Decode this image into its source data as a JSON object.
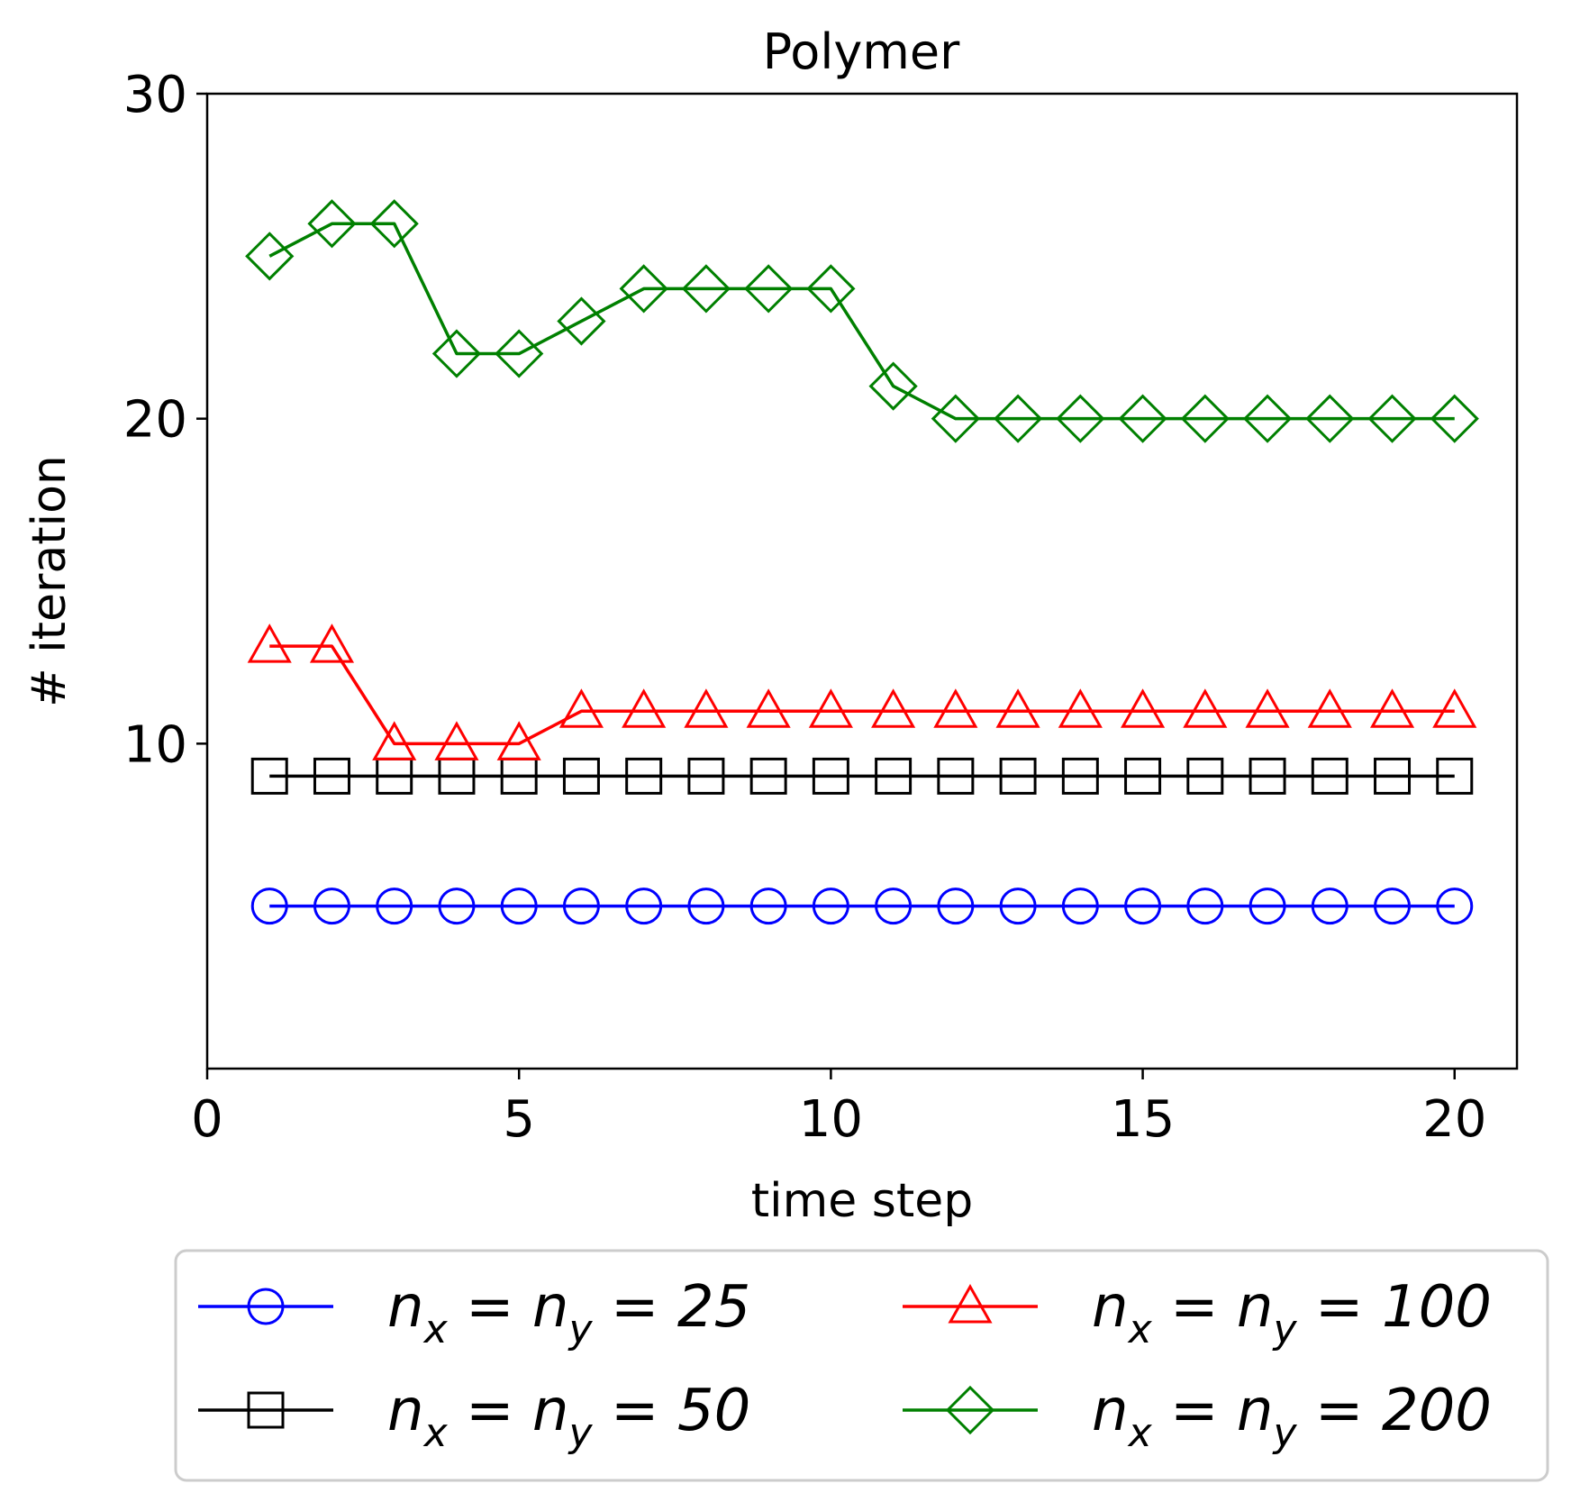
{
  "chart_data": {
    "type": "line",
    "title": "Polymer",
    "xlabel": "time step",
    "ylabel": "# iteration",
    "xlim": [
      0,
      21
    ],
    "ylim": [
      0,
      30
    ],
    "xticks": [
      0,
      5,
      10,
      15,
      20
    ],
    "yticks": [
      10,
      20,
      30
    ],
    "grid": false,
    "legend_position": "bottom-center",
    "x": [
      1,
      2,
      3,
      4,
      5,
      6,
      7,
      8,
      9,
      10,
      11,
      12,
      13,
      14,
      15,
      16,
      17,
      18,
      19,
      20
    ],
    "series": [
      {
        "name": "n_x = n_y = 25",
        "label_parts": [
          "n",
          "x",
          " = ",
          "n",
          "y",
          " = 25"
        ],
        "color": "#0000ff",
        "marker": "circle",
        "values": [
          5,
          5,
          5,
          5,
          5,
          5,
          5,
          5,
          5,
          5,
          5,
          5,
          5,
          5,
          5,
          5,
          5,
          5,
          5,
          5
        ]
      },
      {
        "name": "n_x = n_y = 50",
        "label_parts": [
          "n",
          "x",
          " = ",
          "n",
          "y",
          " = 50"
        ],
        "color": "#000000",
        "marker": "square",
        "values": [
          9,
          9,
          9,
          9,
          9,
          9,
          9,
          9,
          9,
          9,
          9,
          9,
          9,
          9,
          9,
          9,
          9,
          9,
          9,
          9
        ]
      },
      {
        "name": "n_x = n_y = 100",
        "label_parts": [
          "n",
          "x",
          " = ",
          "n",
          "y",
          " = 100"
        ],
        "color": "#ff0000",
        "marker": "triangle",
        "values": [
          13,
          13,
          10,
          10,
          10,
          11,
          11,
          11,
          11,
          11,
          11,
          11,
          11,
          11,
          11,
          11,
          11,
          11,
          11,
          11
        ]
      },
      {
        "name": "n_x = n_y = 200",
        "label_parts": [
          "n",
          "x",
          " = ",
          "n",
          "y",
          " = 200"
        ],
        "color": "#008000",
        "marker": "diamond",
        "values": [
          25,
          26,
          26,
          22,
          22,
          23,
          24,
          24,
          24,
          24,
          21,
          20,
          20,
          20,
          20,
          20,
          20,
          20,
          20,
          20
        ]
      }
    ]
  }
}
